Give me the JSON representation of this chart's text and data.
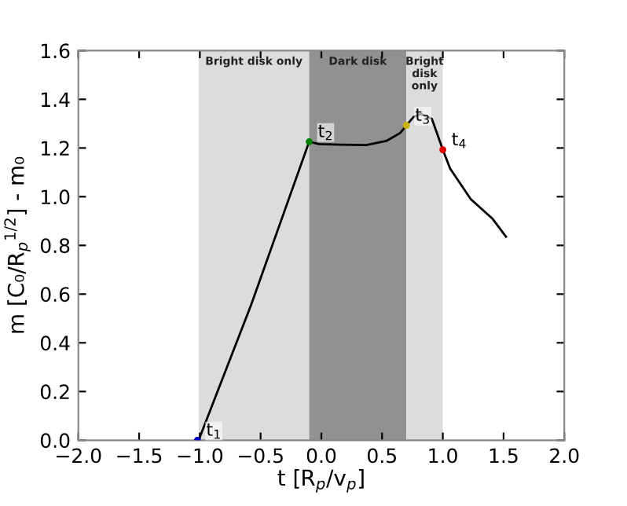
{
  "chart_data": {
    "type": "line",
    "xlabel": "t [R$_{p}$/v$_{p}$]",
    "ylabel": "m [C₀/R$_{p}$$^{1/2}$] - m₀",
    "series": [
      {
        "color": "#000000",
        "x": [
          -1.01,
          -0.578,
          -0.1,
          -0.02,
          0.155,
          0.37,
          0.54,
          0.65,
          0.7,
          0.76,
          0.82,
          0.91,
          1.0,
          1.06,
          1.23,
          1.41,
          1.52
        ],
        "values": [
          0,
          0.556,
          1.226,
          1.216,
          1.214,
          1.212,
          1.23,
          1.262,
          1.293,
          1.328,
          1.34,
          1.32,
          1.193,
          1.116,
          0.99,
          0.909,
          0.836
        ]
      },
      {
        "type": "scatter",
        "x": [
          -1.02,
          -0.1,
          0.7,
          1.0
        ],
        "values": [
          0,
          1.226,
          1.293,
          1.193
        ],
        "colors": [
          "#0000cc",
          "#008000",
          "#c8b400",
          "#e00000"
        ]
      }
    ],
    "bands": [
      {
        "axis": "x",
        "from": -1.01,
        "to": -0.1,
        "label": "Bright disk only",
        "color": "#dcdcdc"
      },
      {
        "axis": "x",
        "from": -0.1,
        "to": 0.7,
        "label": "Dark disk",
        "color": "#919191"
      },
      {
        "axis": "x",
        "from": 0.7,
        "to": 1.0,
        "label": "Bright\ndisk\nonly",
        "color": "#dcdcdc"
      }
    ],
    "annotations": [
      {
        "text": "t$_{1}$",
        "x": -1.02,
        "y": 0
      },
      {
        "text": "t$_{2}$",
        "x": -0.1,
        "y": 1.226
      },
      {
        "text": "t$_{3}$",
        "x": 0.7,
        "y": 1.293
      },
      {
        "text": "t$_{4}$",
        "x": 1.0,
        "y": 1.193
      }
    ],
    "xlim": [
      -2.0,
      2.0
    ],
    "xticks": [
      {
        "value": -2,
        "label": "−2.0"
      },
      {
        "value": -1.5,
        "label": "−1.5"
      },
      {
        "value": -1,
        "label": "−1.0"
      },
      {
        "value": -0.5,
        "label": "−0.5"
      },
      {
        "value": 0,
        "label": "0.0"
      },
      {
        "value": 0.5,
        "label": "0.5"
      },
      {
        "value": 1,
        "label": "1.0"
      },
      {
        "value": 1.5,
        "label": "1.5"
      },
      {
        "value": 2,
        "label": "2.0"
      }
    ],
    "ylim": [
      0.0,
      1.6
    ],
    "yticks": [
      {
        "value": 0,
        "label": "0.0"
      },
      0.2,
      0.4,
      0.6,
      0.8,
      {
        "value": 1,
        "label": "1.0"
      },
      1.2,
      1.4,
      1.6
    ],
    "grid": false,
    "legend": false
  }
}
